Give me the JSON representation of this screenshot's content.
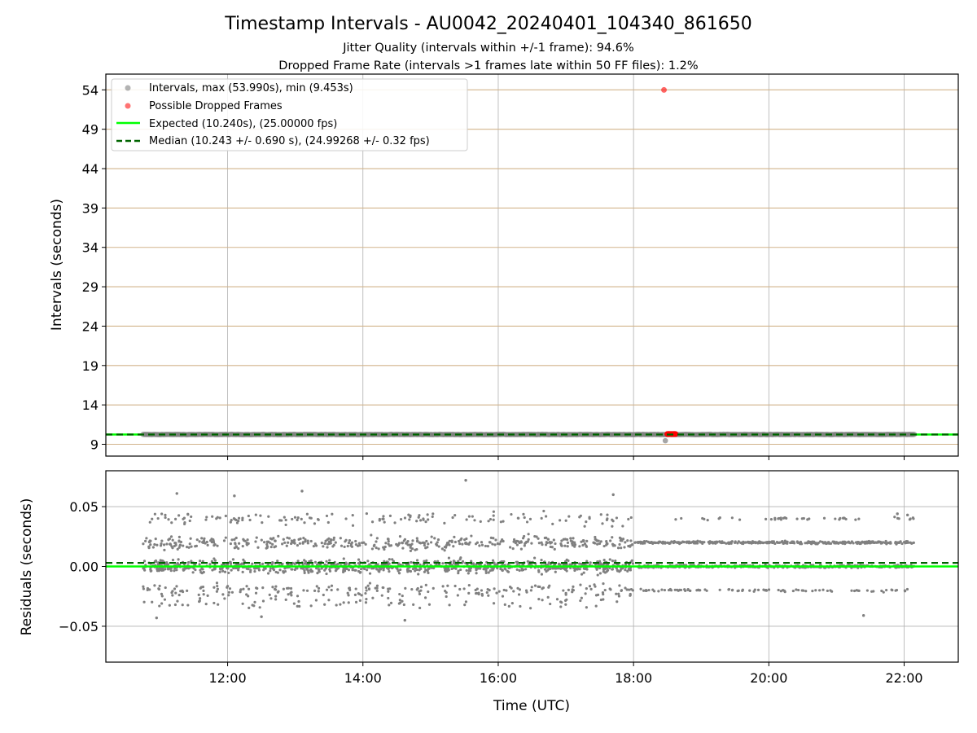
{
  "figure": {
    "title": "Timestamp Intervals - AU0042_20240401_104340_861650",
    "subtitle_1": "Jitter Quality (intervals within +/-1 frame): 94.6%",
    "subtitle_2": "Dropped Frame Rate (intervals >1 frames late within 50 FF files): 1.2%"
  },
  "colors": {
    "points": "#808080",
    "dropped": "#ff0000",
    "expected": "#00ff00",
    "median": "#006400",
    "hgrid_top": "#d2b48c",
    "grid": "#b0b0b0"
  },
  "chart_data": [
    {
      "type": "scatter",
      "ylabel": "Intervals (seconds)",
      "x_range_hours": [
        10.2,
        22.8
      ],
      "ylim": [
        7.5,
        56.0
      ],
      "yticks": [
        9,
        14,
        19,
        24,
        29,
        34,
        39,
        44,
        49,
        54
      ],
      "xticks": [
        12,
        14,
        16,
        18,
        20,
        22
      ],
      "xtick_labels": [
        "12:00",
        "14:00",
        "16:00",
        "18:00",
        "20:00",
        "22:00"
      ],
      "legend_position": "upper-left",
      "legend": {
        "intervals": "Intervals, max (53.990s), min (9.453s)",
        "dropped": "Possible Dropped Frames",
        "expected": "Expected (10.240s), (25.00000 fps)",
        "median": "Median (10.243 +/- 0.690 s), (24.99268 +/- 0.32 fps)"
      },
      "series": [
        {
          "name": "Intervals, max (53.990s), min (9.453s)",
          "x_range": [
            10.75,
            22.15
          ],
          "y_typical": 10.24
        },
        {
          "name": "Possible Dropped Frames",
          "points": [
            [
              18.45,
              53.99
            ],
            [
              18.5,
              10.3
            ],
            [
              18.52,
              10.32
            ],
            [
              18.54,
              10.3
            ],
            [
              18.56,
              10.31
            ],
            [
              18.58,
              10.3
            ],
            [
              18.6,
              10.32
            ],
            [
              18.62,
              10.3
            ]
          ]
        },
        {
          "name": "Expected (10.240s), (25.00000 fps)",
          "y": 10.24
        },
        {
          "name": "Median (10.243 +/- 0.690 s), (24.99268 +/- 0.32 fps)",
          "y": 10.243
        }
      ],
      "min_point": [
        18.47,
        9.453
      ]
    },
    {
      "type": "scatter",
      "ylabel": "Residuals (seconds)",
      "xlabel": "Time (UTC)",
      "x_range_hours": [
        10.2,
        22.8
      ],
      "ylim": [
        -0.08,
        0.08
      ],
      "yticks": [
        0.05,
        0.0,
        -0.05
      ],
      "ytick_labels": [
        "0.05",
        "0.00",
        "−0.05"
      ],
      "xticks": [
        12,
        14,
        16,
        18,
        20,
        22
      ],
      "xtick_labels": [
        "12:00",
        "14:00",
        "16:00",
        "18:00",
        "20:00",
        "22:00"
      ],
      "expected_line": 0.0,
      "median_line": 0.003,
      "residual_bands": [
        -0.02,
        0.0,
        0.02
      ],
      "outliers": [
        [
          15.52,
          0.072
        ],
        [
          13.1,
          0.063
        ],
        [
          11.25,
          0.061
        ],
        [
          17.7,
          0.06
        ],
        [
          12.1,
          0.059
        ],
        [
          10.95,
          -0.043
        ],
        [
          14.62,
          -0.045
        ],
        [
          21.4,
          -0.041
        ],
        [
          12.5,
          -0.042
        ],
        [
          21.9,
          0.044
        ],
        [
          22.05,
          0.043
        ]
      ]
    }
  ]
}
